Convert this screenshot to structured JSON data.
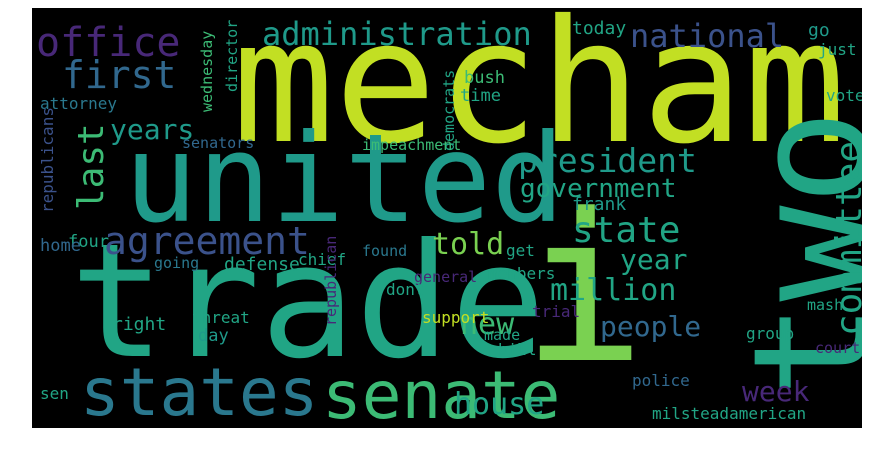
{
  "palette": {
    "yellow": "#c2df23",
    "lime": "#7ad151",
    "green": "#3cbb75",
    "teal": "#21a585",
    "cyan": "#1f9a8a",
    "blue": "#2a788e",
    "steel": "#31688e",
    "indigo": "#3b528b",
    "purple": "#482878",
    "dark": "#440154"
  },
  "words": [
    {
      "text": "mecham",
      "color": "yellow"
    },
    {
      "text": "united",
      "color": "cyan"
    },
    {
      "text": "trade",
      "color": "teal"
    },
    {
      "text": "i",
      "color": "lime"
    },
    {
      "text": "two",
      "color": "teal"
    },
    {
      "text": "states",
      "color": "blue"
    },
    {
      "text": "senate",
      "color": "green"
    },
    {
      "text": "office",
      "color": "purple"
    },
    {
      "text": "administration",
      "color": "cyan"
    },
    {
      "text": "national",
      "color": "indigo"
    },
    {
      "text": "first",
      "color": "steel"
    },
    {
      "text": "last",
      "color": "green"
    },
    {
      "text": "years",
      "color": "cyan"
    },
    {
      "text": "president",
      "color": "cyan"
    },
    {
      "text": "government",
      "color": "teal"
    },
    {
      "text": "agreement",
      "color": "indigo"
    },
    {
      "text": "told",
      "color": "lime"
    },
    {
      "text": "state",
      "color": "teal"
    },
    {
      "text": "committee",
      "color": "teal"
    },
    {
      "text": "year",
      "color": "teal"
    },
    {
      "text": "million",
      "color": "teal"
    },
    {
      "text": "new",
      "color": "green"
    },
    {
      "text": "people",
      "color": "steel"
    },
    {
      "text": "house",
      "color": "teal"
    },
    {
      "text": "week",
      "color": "purple"
    },
    {
      "text": "today",
      "color": "teal"
    },
    {
      "text": "go",
      "color": "cyan"
    },
    {
      "text": "just",
      "color": "teal"
    },
    {
      "text": "wednesday",
      "color": "green"
    },
    {
      "text": "director",
      "color": "teal"
    },
    {
      "text": "attorney",
      "color": "blue"
    },
    {
      "text": "republicans",
      "color": "indigo"
    },
    {
      "text": "bush",
      "color": "green"
    },
    {
      "text": "time",
      "color": "teal"
    },
    {
      "text": "democrats",
      "color": "teal"
    },
    {
      "text": "vote",
      "color": "teal"
    },
    {
      "text": "senators",
      "color": "steel"
    },
    {
      "text": "impeachment",
      "color": "green"
    },
    {
      "text": "frank",
      "color": "cyan"
    },
    {
      "text": "four",
      "color": "teal"
    },
    {
      "text": "members",
      "color": "teal"
    },
    {
      "text": "home",
      "color": "steel"
    },
    {
      "text": "found",
      "color": "blue"
    },
    {
      "text": "get",
      "color": "teal"
    },
    {
      "text": "going",
      "color": "blue"
    },
    {
      "text": "defense",
      "color": "teal"
    },
    {
      "text": "chief",
      "color": "teal"
    },
    {
      "text": "general",
      "color": "purple"
    },
    {
      "text": "dont",
      "color": "teal"
    },
    {
      "text": "right",
      "color": "teal"
    },
    {
      "text": "threat",
      "color": "teal"
    },
    {
      "text": "support",
      "color": "yellow"
    },
    {
      "text": "day",
      "color": "cyan"
    },
    {
      "text": "trial",
      "color": "purple"
    },
    {
      "text": "republican",
      "color": "purple"
    },
    {
      "text": "made",
      "color": "teal"
    },
    {
      "text": "bill",
      "color": "teal"
    },
    {
      "text": "group",
      "color": "teal"
    },
    {
      "text": "mash",
      "color": "teal"
    },
    {
      "text": "court",
      "color": "purple"
    },
    {
      "text": "police",
      "color": "steel"
    },
    {
      "text": "sen",
      "color": "teal"
    },
    {
      "text": "milsteadamerican",
      "color": "teal"
    }
  ]
}
